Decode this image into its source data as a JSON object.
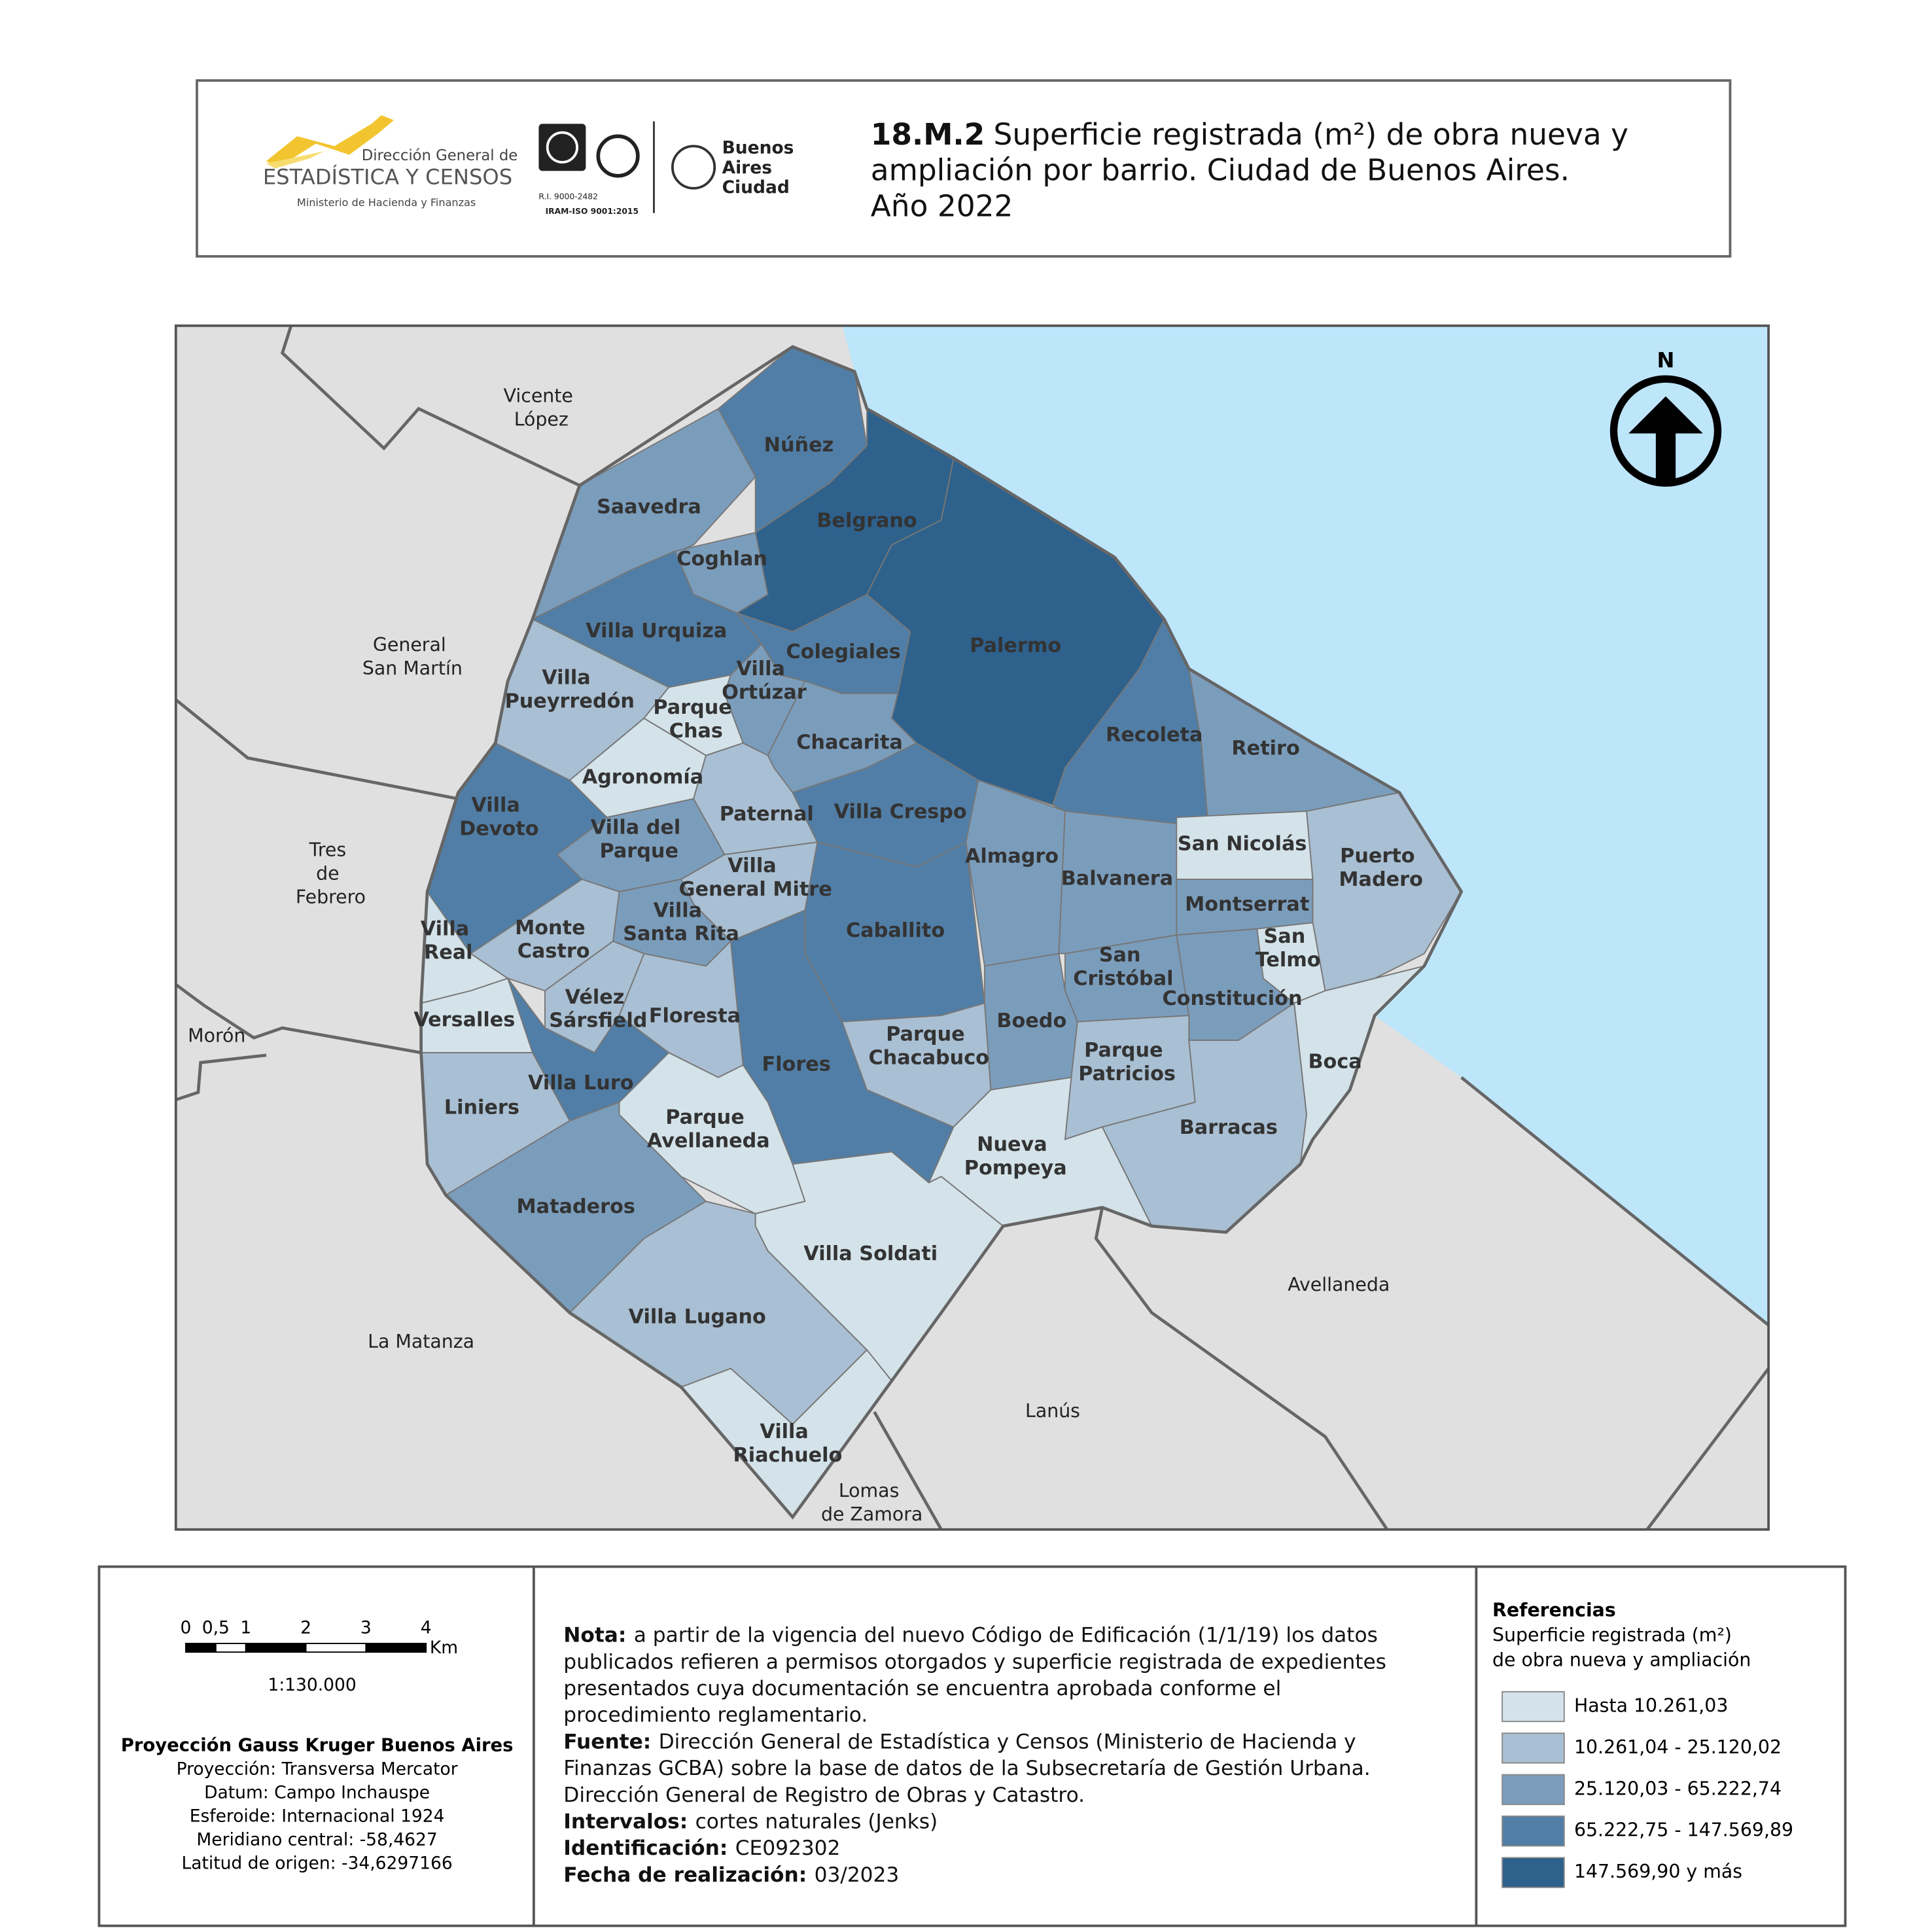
{
  "header": {
    "code": "18.M.2",
    "title_lines": [
      "Superficie registrada (m²) de obra nueva y",
      "ampliación por barrio. Ciudad de Buenos Aires.",
      "Año 2022"
    ],
    "logos": {
      "dgec_top": "Dirección General de",
      "dgec_main": "ESTADÍSTICA Y CENSOS",
      "dgec_ministry": "Ministerio de Hacienda y Finanzas",
      "iram_ri": "R.I. 9000-2482",
      "iram_iso": "IRAM-ISO 9001:2015",
      "ba_lines": [
        "Buenos",
        "Aires",
        "Ciudad"
      ]
    }
  },
  "map": {
    "north": "N",
    "barrios": [
      {
        "name": "Saavedra",
        "class": 2
      },
      {
        "name": "Núñez",
        "class": 3
      },
      {
        "name": "Coghlan",
        "class": 2
      },
      {
        "name": "Belgrano",
        "class": 4
      },
      {
        "name": "Villa Urquiza",
        "class": 3
      },
      {
        "name": "Villa Pueyrredón",
        "class": 1
      },
      {
        "name": "Colegiales",
        "class": 3
      },
      {
        "name": "Palermo",
        "class": 4
      },
      {
        "name": "Villa Ortúzar",
        "class": 2
      },
      {
        "name": "Parque Chas",
        "class": 0
      },
      {
        "name": "Agronomía",
        "class": 0
      },
      {
        "name": "Chacarita",
        "class": 2
      },
      {
        "name": "Paternal",
        "class": 1
      },
      {
        "name": "Villa Crespo",
        "class": 3
      },
      {
        "name": "Recoleta",
        "class": 3
      },
      {
        "name": "Retiro",
        "class": 2
      },
      {
        "name": "Villa Devoto",
        "class": 3
      },
      {
        "name": "Villa del Parque",
        "class": 2
      },
      {
        "name": "Villa General Mitre",
        "class": 1
      },
      {
        "name": "Villa Santa Rita",
        "class": 2
      },
      {
        "name": "Monte Castro",
        "class": 1
      },
      {
        "name": "Villa Real",
        "class": 0
      },
      {
        "name": "Versalles",
        "class": 0
      },
      {
        "name": "Vélez Sársfield",
        "class": 1
      },
      {
        "name": "Floresta",
        "class": 1
      },
      {
        "name": "Villa Luro",
        "class": 3
      },
      {
        "name": "Liniers",
        "class": 1
      },
      {
        "name": "Caballito",
        "class": 3
      },
      {
        "name": "Flores",
        "class": 3
      },
      {
        "name": "Almagro",
        "class": 2
      },
      {
        "name": "Balvanera",
        "class": 2
      },
      {
        "name": "San Nicolás",
        "class": 0
      },
      {
        "name": "Montserrat",
        "class": 2
      },
      {
        "name": "Puerto Madero",
        "class": 1
      },
      {
        "name": "San Telmo",
        "class": 0
      },
      {
        "name": "San Cristóbal",
        "class": 2
      },
      {
        "name": "Constitución",
        "class": 2
      },
      {
        "name": "Boedo",
        "class": 2
      },
      {
        "name": "Parque Chacabuco",
        "class": 1
      },
      {
        "name": "Parque Patricios",
        "class": 1
      },
      {
        "name": "Barracas",
        "class": 1
      },
      {
        "name": "Boca",
        "class": 0
      },
      {
        "name": "Nueva Pompeya",
        "class": 0
      },
      {
        "name": "Parque Avellaneda",
        "class": 0
      },
      {
        "name": "Mataderos",
        "class": 2
      },
      {
        "name": "Villa Lugano",
        "class": 1
      },
      {
        "name": "Villa Soldati",
        "class": 0
      },
      {
        "name": "Villa Riachuelo",
        "class": 0
      }
    ],
    "neighbors": [
      "Vicente López",
      "General San Martín",
      "Tres de Febrero",
      "Morón",
      "La Matanza",
      "Lomas de Zamora",
      "Lanús",
      "Avellaneda"
    ]
  },
  "scale": {
    "ticks": [
      0,
      {
        "value": 0.5,
        "label": "0,5"
      },
      1,
      2,
      3,
      4
    ],
    "unit": "Km",
    "ratio": "1:130.000"
  },
  "projection": {
    "title": "Proyección Gauss Kruger Buenos Aires",
    "lines": [
      "Proyección: Transversa Mercator",
      "Datum: Campo Inchauspe",
      "Esferoide: Internacional 1924",
      "Meridiano central: -58,4627",
      "Latitud de origen: -34,6297166"
    ]
  },
  "notes": [
    {
      "label": "Nota:",
      "lines": [
        "a partir de la vigencia del nuevo Código de Edificación (1/1/19) los datos",
        "publicados refieren a permisos otorgados y superficie registrada de expedientes",
        "presentados cuya documentación se encuentra aprobada conforme el",
        "procedimiento reglamentario."
      ]
    },
    {
      "label": "Fuente:",
      "lines": [
        "Dirección General de Estadística y Censos (Ministerio de Hacienda y",
        "Finanzas GCBA) sobre la base de datos de la Subsecretaría de Gestión Urbana.",
        "Dirección General de Registro de Obras y Catastro."
      ]
    },
    {
      "label": "Intervalos:",
      "lines": [
        "cortes naturales (Jenks)"
      ]
    },
    {
      "label": "Identificación:",
      "lines": [
        "CE092302"
      ]
    },
    {
      "label": "Fecha de realización:",
      "lines": [
        "03/2023"
      ]
    }
  ],
  "legend": {
    "title": "Referencias",
    "subtitle_lines": [
      "Superficie registrada (m²)",
      "de obra nueva y ampliación"
    ],
    "classes": [
      {
        "label": "Hasta 10.261,03",
        "color": "#d4e3ea"
      },
      {
        "label": "10.261,04 - 25.120,02",
        "color": "#a9bfd3"
      },
      {
        "label": "25.120,03 - 65.222,74",
        "color": "#7b9dbc"
      },
      {
        "label": "65.222,75 - 147.569,89",
        "color": "#517ea6"
      },
      {
        "label": "147.569,90 y más",
        "color": "#2e618c"
      }
    ]
  }
}
